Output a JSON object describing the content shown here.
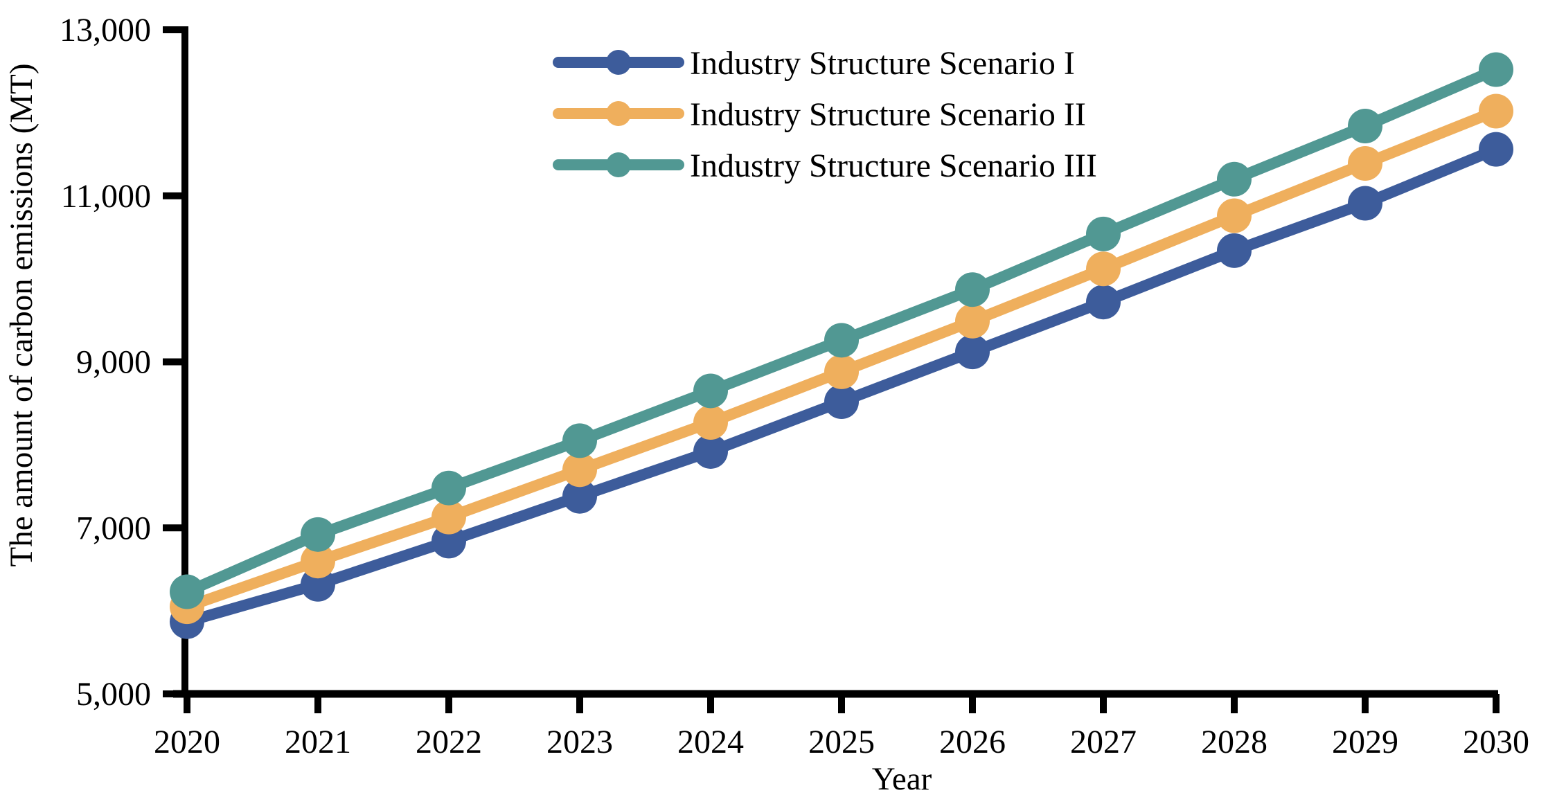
{
  "figure": {
    "background": "#FFFFFF",
    "axis_color": "#000000",
    "text_color": "#000000"
  },
  "y_axis": {
    "title": "The amount of carbon emissions (MT)",
    "tick_labels": [
      "13,000",
      "11,000",
      "9,000",
      "7,000",
      "5,000"
    ],
    "tick_values": [
      13000,
      11000,
      9000,
      7000,
      5000
    ],
    "range": [
      5000,
      13000
    ]
  },
  "x_axis": {
    "title": "Year",
    "tick_labels": [
      "2020",
      "2021",
      "2022",
      "2023",
      "2024",
      "2025",
      "2026",
      "2027",
      "2028",
      "2029",
      "2030"
    ],
    "tick_values": [
      2020,
      2021,
      2022,
      2023,
      2024,
      2025,
      2026,
      2027,
      2028,
      2029,
      2030
    ]
  },
  "chart_data": {
    "type": "line",
    "title": "",
    "x": [
      2020,
      2021,
      2022,
      2023,
      2024,
      2025,
      2026,
      2027,
      2028,
      2029,
      2030
    ],
    "series": [
      {
        "name": "Industry Structure Scenario I",
        "color": "#3D5C9B",
        "values": [
          5870,
          6320,
          6840,
          7380,
          7920,
          8520,
          9120,
          9720,
          10340,
          10910,
          11560
        ]
      },
      {
        "name": "Industry Structure Scenario II",
        "color": "#EFAF5D",
        "values": [
          6050,
          6600,
          7130,
          7700,
          8270,
          8880,
          9490,
          10120,
          10760,
          11390,
          12020
        ]
      },
      {
        "name": "Industry Structure Scenario III",
        "color": "#519893",
        "values": [
          6230,
          6920,
          7480,
          8050,
          8650,
          9260,
          9870,
          10540,
          11200,
          11840,
          12520
        ]
      }
    ],
    "xlabel": "Year",
    "ylabel": "The amount of carbon emissions (MT)",
    "ylim": [
      5000,
      13000
    ],
    "xlim": [
      2020,
      2030
    ],
    "grid": false,
    "legend_position": "top-center-inside",
    "marker": "circle",
    "units": "MT"
  }
}
